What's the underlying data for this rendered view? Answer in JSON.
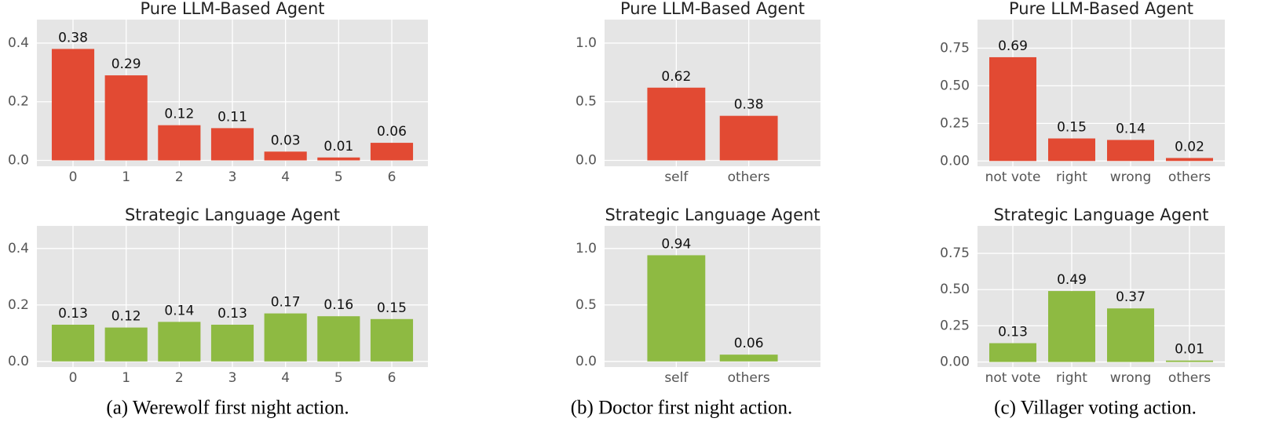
{
  "chart_data": [
    {
      "type": "bar",
      "title": "Pure LLM-Based Agent",
      "categories": [
        "0",
        "1",
        "2",
        "3",
        "4",
        "5",
        "6"
      ],
      "values": [
        0.38,
        0.29,
        0.12,
        0.11,
        0.03,
        0.01,
        0.06
      ],
      "color": "#E24A33",
      "ylim": [
        -0.02,
        0.48
      ],
      "yticks": [
        {
          "value": 0,
          "label": "0.0"
        },
        0.2,
        0.4
      ],
      "grid": true
    },
    {
      "type": "bar",
      "title": "Strategic Language Agent",
      "categories": [
        "0",
        "1",
        "2",
        "3",
        "4",
        "5",
        "6"
      ],
      "values": [
        0.13,
        0.12,
        0.14,
        0.13,
        0.17,
        0.16,
        0.15
      ],
      "color": "#8EBA42",
      "ylim": [
        -0.02,
        0.48
      ],
      "yticks": [
        {
          "value": 0,
          "label": "0.0"
        },
        0.2,
        0.4
      ],
      "grid": true
    },
    {
      "type": "bar",
      "title": "Pure LLM-Based Agent",
      "categories": [
        "self",
        "others"
      ],
      "values": [
        0.62,
        0.38
      ],
      "color": "#E24A33",
      "ylim": [
        -0.05,
        1.2
      ],
      "yticks": [
        {
          "value": 0,
          "label": "0.0"
        },
        0.5,
        {
          "value": 1,
          "label": "1.0"
        }
      ],
      "grid": true
    },
    {
      "type": "bar",
      "title": "Strategic Language Agent",
      "categories": [
        "self",
        "others"
      ],
      "values": [
        0.94,
        0.06
      ],
      "color": "#8EBA42",
      "ylim": [
        -0.05,
        1.2
      ],
      "yticks": [
        {
          "value": 0,
          "label": "0.0"
        },
        0.5,
        {
          "value": 1,
          "label": "1.0"
        }
      ],
      "grid": true
    },
    {
      "type": "bar",
      "title": "Pure LLM-Based Agent",
      "categories": [
        "not vote",
        "right",
        "wrong",
        "others"
      ],
      "values": [
        0.69,
        0.15,
        0.14,
        0.02
      ],
      "color": "#E24A33",
      "ylim": [
        -0.035,
        0.94
      ],
      "yticks": [
        {
          "value": 0,
          "label": "0.00"
        },
        0.25,
        {
          "value": 0.5,
          "label": "0.50"
        },
        0.75
      ],
      "grid": true
    },
    {
      "type": "bar",
      "title": "Strategic Language Agent",
      "categories": [
        "not vote",
        "right",
        "wrong",
        "others"
      ],
      "values": [
        0.13,
        0.49,
        0.37,
        0.01
      ],
      "color": "#8EBA42",
      "ylim": [
        -0.035,
        0.94
      ],
      "yticks": [
        {
          "value": 0,
          "label": "0.00"
        },
        0.25,
        {
          "value": 0.5,
          "label": "0.50"
        },
        0.75
      ],
      "grid": true
    }
  ],
  "captions": [
    "(a)  Werewolf first night action.",
    "(b)  Doctor first night action.",
    "(c)  Villager voting action."
  ]
}
